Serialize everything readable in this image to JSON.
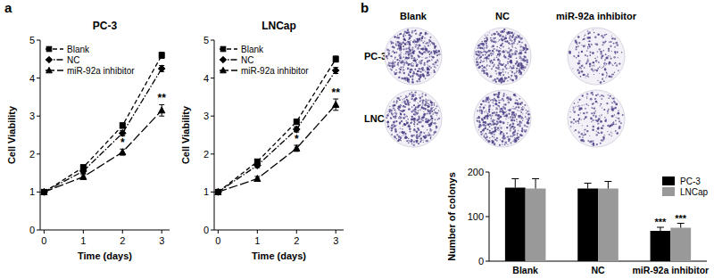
{
  "chart_data": [
    {
      "type": "line",
      "panel_label": "a",
      "title": "PC-3",
      "xlabel": "Time (days)",
      "ylabel": "Cell Viability",
      "x": [
        0,
        1,
        2,
        3
      ],
      "xlim": [
        -0.1,
        3.2
      ],
      "ylim": [
        0,
        5
      ],
      "xticks": [
        0,
        1,
        2,
        3
      ],
      "yticks": [
        0,
        1,
        2,
        3,
        4,
        5
      ],
      "grid": false,
      "legend": "upper left",
      "series": [
        {
          "name": "Blank",
          "color": "#000000",
          "marker": "square",
          "line_style": "dashed",
          "values": [
            1,
            1.65,
            2.75,
            4.6
          ],
          "error": [
            0.03,
            0.06,
            0.07,
            0.08
          ]
        },
        {
          "name": "NC",
          "color": "#000000",
          "marker": "diamond",
          "line_style": "dashdot",
          "values": [
            1,
            1.55,
            2.55,
            4.25
          ],
          "error": [
            0.03,
            0.06,
            0.07,
            0.08
          ]
        },
        {
          "name": "miR-92a inhibitor",
          "color": "#000000",
          "marker": "triangle",
          "line_style": "longdash",
          "values": [
            1,
            1.4,
            2.05,
            3.15
          ],
          "error": [
            0.03,
            0.06,
            0.08,
            0.15
          ]
        }
      ],
      "annotations": [
        {
          "text": "*",
          "x": 2,
          "series": "miR-92a inhibitor"
        },
        {
          "text": "**",
          "x": 3,
          "series": "miR-92a inhibitor"
        }
      ]
    },
    {
      "type": "line",
      "title": "LNCap",
      "xlabel": "Time (days)",
      "ylabel": "Cell Viability",
      "x": [
        0,
        1,
        2,
        3
      ],
      "xlim": [
        -0.1,
        3.2
      ],
      "ylim": [
        0,
        5
      ],
      "xticks": [
        0,
        1,
        2,
        3
      ],
      "yticks": [
        0,
        1,
        2,
        3,
        4,
        5
      ],
      "grid": false,
      "legend": "upper left",
      "series": [
        {
          "name": "Blank",
          "color": "#000000",
          "marker": "square",
          "line_style": "dashed",
          "values": [
            1,
            1.8,
            2.85,
            4.5
          ],
          "error": [
            0.03,
            0.06,
            0.07,
            0.08
          ]
        },
        {
          "name": "NC",
          "color": "#000000",
          "marker": "diamond",
          "line_style": "dashdot",
          "values": [
            1,
            1.7,
            2.65,
            4.2
          ],
          "error": [
            0.03,
            0.06,
            0.07,
            0.08
          ]
        },
        {
          "name": "miR-92a inhibitor",
          "color": "#000000",
          "marker": "triangle",
          "line_style": "longdash",
          "values": [
            1,
            1.35,
            2.15,
            3.3
          ],
          "error": [
            0.03,
            0.06,
            0.08,
            0.15
          ]
        }
      ],
      "annotations": [
        {
          "text": "*",
          "x": 2,
          "series": "miR-92a inhibitor"
        },
        {
          "text": "**",
          "x": 3,
          "series": "miR-92a inhibitor"
        }
      ]
    },
    {
      "type": "bar",
      "panel_label": "b",
      "ylabel": "Number of colonys",
      "categories": [
        "Blank",
        "NC",
        "miR-92a inhibitor"
      ],
      "ylim": [
        0,
        200
      ],
      "yticks": [
        0,
        100,
        200
      ],
      "grid": false,
      "legend": "upper right",
      "series": [
        {
          "name": "PC-3",
          "color": "#000000",
          "values": [
            165,
            163,
            68
          ],
          "error": [
            20,
            12,
            8
          ]
        },
        {
          "name": "LNCap",
          "color": "#999999",
          "values": [
            163,
            163,
            75
          ],
          "error": [
            22,
            16,
            10
          ]
        }
      ],
      "annotations": [
        {
          "text": "***",
          "x": "miR-92a inhibitor",
          "series": "PC-3"
        },
        {
          "text": "***",
          "x": "miR-92a inhibitor",
          "series": "LNCap"
        }
      ]
    }
  ]
}
